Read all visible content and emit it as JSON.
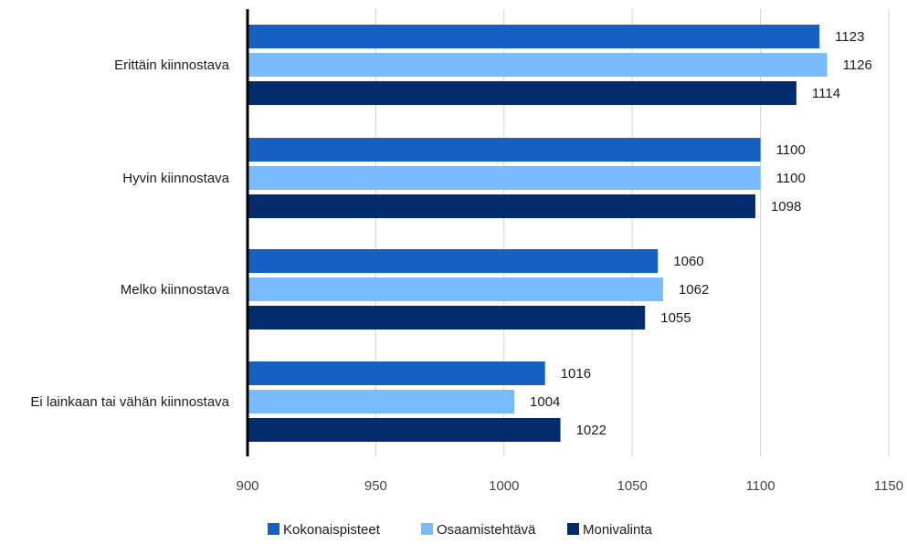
{
  "chart_data": {
    "type": "bar",
    "orientation": "horizontal",
    "categories": [
      "Erittäin kiinnostava",
      "Hyvin kiinnostava",
      "Melko kiinnostava",
      "Ei lainkaan tai vähän kiinnostava"
    ],
    "series": [
      {
        "name": "Kokonaispisteet",
        "color": "#1560c0",
        "values": [
          1123,
          1100,
          1060,
          1016
        ]
      },
      {
        "name": "Osaamistehtävä",
        "color": "#78bbff",
        "values": [
          1126,
          1100,
          1062,
          1004
        ]
      },
      {
        "name": "Monivalinta",
        "color": "#032c6e",
        "values": [
          1114,
          1098,
          1055,
          1022
        ]
      }
    ],
    "xlim": [
      900,
      1150
    ],
    "xticks": [
      "900",
      "950",
      "1000",
      "1050",
      "1100",
      "1150"
    ],
    "grid": true,
    "legend_position": "bottom-center",
    "data_labels": true
  }
}
